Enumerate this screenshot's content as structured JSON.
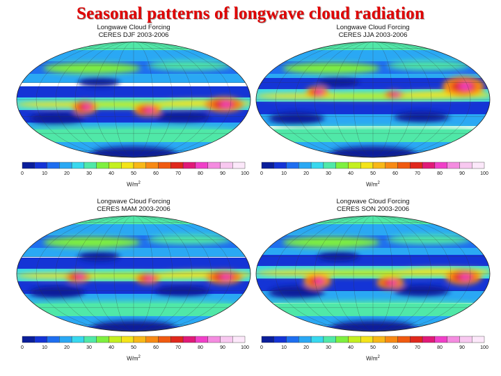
{
  "title": "Seasonal patterns of longwave cloud radiation",
  "colorbar": {
    "ticks": [
      "0",
      "10",
      "20",
      "30",
      "40",
      "50",
      "60",
      "70",
      "80",
      "90",
      "100"
    ],
    "unit": "W/m",
    "unit_sup": "2",
    "colors": [
      "#0a1e9a",
      "#1434d6",
      "#1e6ef0",
      "#2aa8f4",
      "#38d8ee",
      "#50e8a8",
      "#7ef040",
      "#c4f020",
      "#f4e41a",
      "#f8b818",
      "#f88a14",
      "#f05a10",
      "#e0281c",
      "#e01a78",
      "#f040c8",
      "#f48ce0",
      "#f8c8f0",
      "#fce8fa"
    ]
  },
  "panels": [
    {
      "id": "djf",
      "line1": "Longwave Cloud Forcing",
      "line2": "CERES DJF 2003-2006"
    },
    {
      "id": "jja",
      "line1": "Longwave Cloud Forcing",
      "line2": "CERES JJA 2003-2006"
    },
    {
      "id": "mam",
      "line1": "Longwave Cloud Forcing",
      "line2": "CERES MAM 2003-2006"
    },
    {
      "id": "son",
      "line1": "Longwave Cloud Forcing",
      "line2": "CERES SON 2003-2006"
    }
  ]
}
